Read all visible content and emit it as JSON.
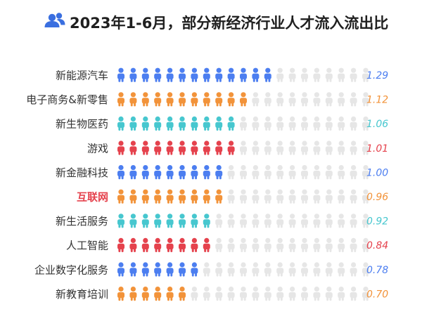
{
  "chart_data": {
    "type": "bar",
    "title": "2023年1-6月，部分新经济行业人才流入流出比",
    "title_icon": "users-icon",
    "categories": [
      "新能源汽车",
      "电子商务&新零售",
      "新生物医药",
      "游戏",
      "新金融科技",
      "互联网",
      "新生活服务",
      "人工智能",
      "企业数字化服务",
      "新教育培训"
    ],
    "values": [
      1.29,
      1.12,
      1.06,
      1.01,
      1.0,
      0.96,
      0.92,
      0.84,
      0.78,
      0.7
    ],
    "value_labels": [
      "1.29",
      "1.12",
      "1.06",
      "1.01",
      "1.00",
      "0.96",
      "0.92",
      "0.84",
      "0.78",
      "0.70"
    ],
    "filled_icons": [
      13,
      11,
      10,
      10,
      9,
      9,
      8,
      8,
      7,
      6
    ],
    "icons_per_row": 21,
    "colors": [
      "#4c7ef0",
      "#f2933a",
      "#47c7cf",
      "#e5424d",
      "#4c7ef0",
      "#f2933a",
      "#47c7cf",
      "#e5424d",
      "#4c7ef0",
      "#f2933a"
    ],
    "empty_color": "#e6e6e6",
    "highlight_category": "互联网",
    "highlight_color": "#e5424d"
  }
}
